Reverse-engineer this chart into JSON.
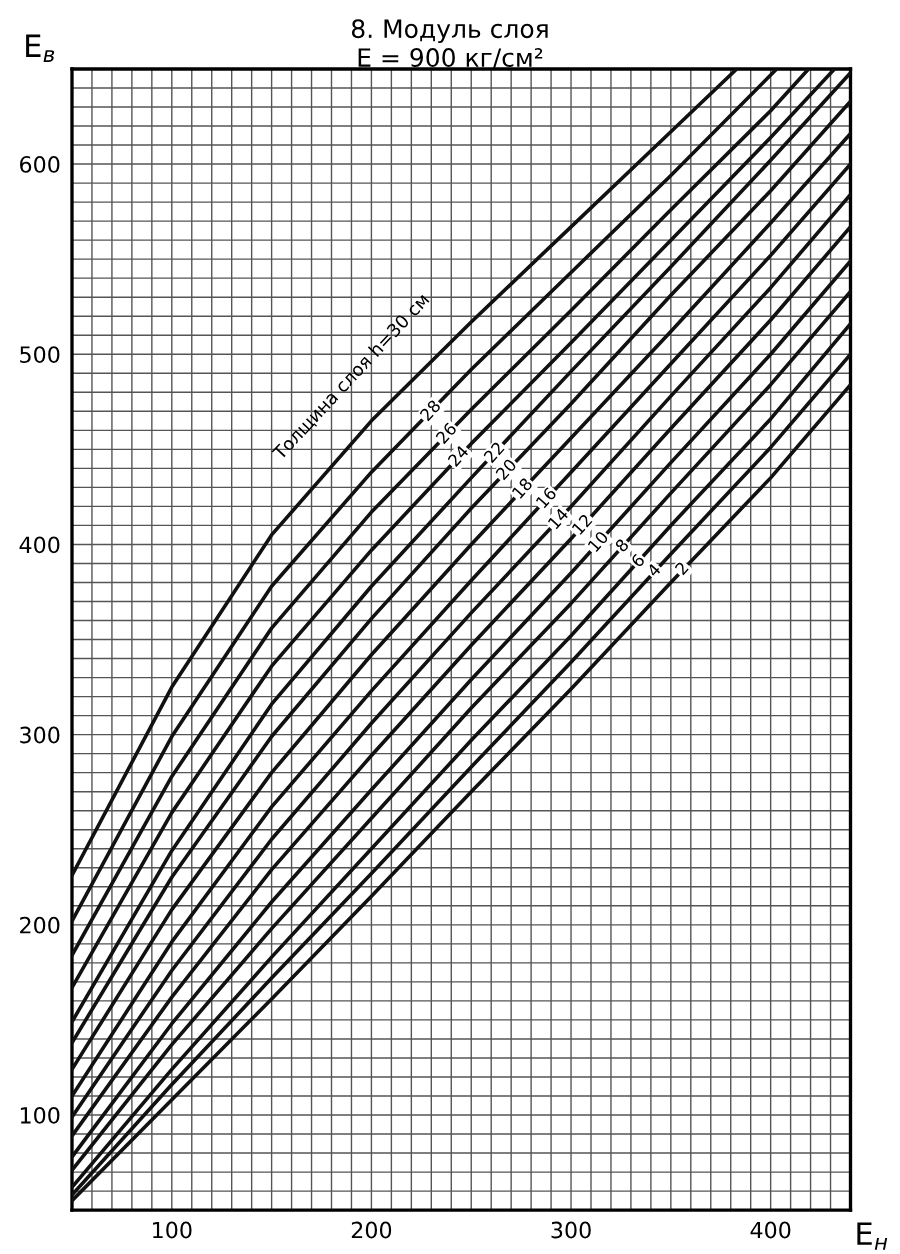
{
  "chart_data": {
    "type": "line",
    "title": "8. Модуль слоя",
    "subtitle": "E = 900 кг/см²",
    "xlabel": "E$_{н}$",
    "ylabel": "E$_{в}$",
    "xlim": [
      50,
      440
    ],
    "ylim": [
      50,
      650
    ],
    "xticks": [
      {
        "value": 50,
        "label": null
      },
      {
        "value": 60,
        "label": null
      },
      {
        "value": 70,
        "label": null
      },
      {
        "value": 80,
        "label": null
      },
      {
        "value": 90,
        "label": null
      },
      100,
      {
        "value": 110,
        "label": null
      },
      {
        "value": 120,
        "label": null
      },
      {
        "value": 130,
        "label": null
      },
      {
        "value": 140,
        "label": null
      },
      {
        "value": 150,
        "label": null
      },
      {
        "value": 160,
        "label": null
      },
      {
        "value": 170,
        "label": null
      },
      {
        "value": 180,
        "label": null
      },
      {
        "value": 190,
        "label": null
      },
      200,
      {
        "value": 210,
        "label": null
      },
      {
        "value": 220,
        "label": null
      },
      {
        "value": 230,
        "label": null
      },
      {
        "value": 240,
        "label": null
      },
      {
        "value": 250,
        "label": null
      },
      {
        "value": 260,
        "label": null
      },
      {
        "value": 270,
        "label": null
      },
      {
        "value": 280,
        "label": null
      },
      {
        "value": 290,
        "label": null
      },
      300,
      {
        "value": 310,
        "label": null
      },
      {
        "value": 320,
        "label": null
      },
      {
        "value": 330,
        "label": null
      },
      {
        "value": 340,
        "label": null
      },
      {
        "value": 350,
        "label": null
      },
      {
        "value": 360,
        "label": null
      },
      {
        "value": 370,
        "label": null
      },
      {
        "value": 380,
        "label": null
      },
      {
        "value": 390,
        "label": null
      },
      400,
      {
        "value": 410,
        "label": null
      },
      {
        "value": 420,
        "label": null
      },
      {
        "value": 430,
        "label": null
      },
      {
        "value": 440,
        "label": null
      }
    ],
    "yticks": [
      {
        "value": 50,
        "label": null
      },
      {
        "value": 60,
        "label": null
      },
      {
        "value": 70,
        "label": null
      },
      {
        "value": 80,
        "label": null
      },
      {
        "value": 90,
        "label": null
      },
      100,
      {
        "value": 110,
        "label": null
      },
      {
        "value": 120,
        "label": null
      },
      {
        "value": 130,
        "label": null
      },
      {
        "value": 140,
        "label": null
      },
      {
        "value": 150,
        "label": null
      },
      {
        "value": 160,
        "label": null
      },
      {
        "value": 170,
        "label": null
      },
      {
        "value": 180,
        "label": null
      },
      {
        "value": 190,
        "label": null
      },
      200,
      {
        "value": 210,
        "label": null
      },
      {
        "value": 220,
        "label": null
      },
      {
        "value": 230,
        "label": null
      },
      {
        "value": 240,
        "label": null
      },
      {
        "value": 250,
        "label": null
      },
      {
        "value": 260,
        "label": null
      },
      {
        "value": 270,
        "label": null
      },
      {
        "value": 280,
        "label": null
      },
      {
        "value": 290,
        "label": null
      },
      300,
      {
        "value": 310,
        "label": null
      },
      {
        "value": 320,
        "label": null
      },
      {
        "value": 330,
        "label": null
      },
      {
        "value": 340,
        "label": null
      },
      {
        "value": 350,
        "label": null
      },
      {
        "value": 360,
        "label": null
      },
      {
        "value": 370,
        "label": null
      },
      {
        "value": 380,
        "label": null
      },
      {
        "value": 390,
        "label": null
      },
      400,
      {
        "value": 410,
        "label": null
      },
      {
        "value": 420,
        "label": null
      },
      {
        "value": 430,
        "label": null
      },
      {
        "value": 440,
        "label": null
      },
      {
        "value": 450,
        "label": null
      },
      {
        "value": 460,
        "label": null
      },
      {
        "value": 470,
        "label": null
      },
      {
        "value": 480,
        "label": null
      },
      {
        "value": 490,
        "label": null
      },
      500,
      {
        "value": 510,
        "label": null
      },
      {
        "value": 520,
        "label": null
      },
      {
        "value": 530,
        "label": null
      },
      {
        "value": 540,
        "label": null
      },
      {
        "value": 550,
        "label": null
      },
      {
        "value": 560,
        "label": null
      },
      {
        "value": 570,
        "label": null
      },
      {
        "value": 580,
        "label": null
      },
      {
        "value": 590,
        "label": null
      },
      600,
      {
        "value": 610,
        "label": null
      },
      {
        "value": 620,
        "label": null
      },
      {
        "value": 630,
        "label": null
      },
      {
        "value": 640,
        "label": null
      },
      {
        "value": 650,
        "label": null
      }
    ],
    "grid": true,
    "marker": "none",
    "line_style": "solid",
    "series": [
      {
        "color": "#111111",
        "x": [
          50,
          100,
          150,
          200,
          250,
          300,
          350,
          383
        ],
        "values": [
          226,
          325,
          405,
          465,
          517,
          567,
          617,
          650
        ]
      },
      {
        "color": "#111111",
        "x": [
          50,
          100,
          150,
          200,
          250,
          300,
          350,
          403
        ],
        "values": [
          202,
          299,
          378,
          438,
          492,
          543,
          594,
          650
        ]
      },
      {
        "color": "#111111",
        "x": [
          50,
          100,
          150,
          200,
          250,
          300,
          350,
          400,
          419
        ],
        "values": [
          184,
          278,
          356,
          417,
          471,
          523,
          576,
          628,
          650
        ]
      },
      {
        "color": "#111111",
        "x": [
          50,
          100,
          150,
          200,
          250,
          300,
          350,
          400,
          432
        ],
        "values": [
          167,
          259,
          336,
          397,
          453,
          506,
          560,
          614,
          650
        ]
      },
      {
        "color": "#111111",
        "x": [
          50,
          100,
          150,
          200,
          250,
          300,
          350,
          400,
          440
        ],
        "values": [
          149,
          239,
          316,
          378,
          435,
          491,
          546,
          602,
          648
        ]
      },
      {
        "color": "#111111",
        "x": [
          50,
          100,
          150,
          200,
          250,
          300,
          350,
          400,
          440
        ],
        "values": [
          138,
          225,
          299,
          361,
          419,
          474,
          531,
          586,
          633
        ]
      },
      {
        "color": "#111111",
        "x": [
          50,
          100,
          150,
          200,
          250,
          300,
          350,
          400,
          440
        ],
        "values": [
          124,
          208,
          280,
          342,
          400,
          456,
          512,
          569,
          616
        ]
      },
      {
        "color": "#111111",
        "x": [
          50,
          100,
          150,
          200,
          250,
          300,
          350,
          400,
          440
        ],
        "values": [
          110,
          191,
          262,
          323,
          381,
          438,
          495,
          552,
          600
        ]
      },
      {
        "color": "#111111",
        "x": [
          50,
          100,
          150,
          200,
          250,
          300,
          350,
          400,
          440
        ],
        "values": [
          99,
          176,
          245,
          306,
          364,
          420,
          478,
          535,
          584
        ]
      },
      {
        "color": "#111111",
        "x": [
          50,
          100,
          150,
          200,
          250,
          300,
          350,
          400,
          440
        ],
        "values": [
          89,
          162,
          229,
          289,
          347,
          403,
          461,
          518,
          567
        ]
      },
      {
        "color": "#111111",
        "x": [
          50,
          100,
          150,
          200,
          250,
          300,
          350,
          400,
          440
        ],
        "values": [
          78,
          148,
          212,
          271,
          329,
          385,
          443,
          500,
          549
        ]
      },
      {
        "color": "#111111",
        "x": [
          50,
          100,
          150,
          200,
          250,
          300,
          350,
          400,
          440
        ],
        "values": [
          71,
          137,
          198,
          256,
          314,
          369,
          427,
          484,
          533
        ]
      },
      {
        "color": "#111111",
        "x": [
          50,
          100,
          150,
          200,
          250,
          300,
          350,
          400,
          440
        ],
        "values": [
          62,
          124,
          183,
          240,
          297,
          352,
          410,
          466,
          516
        ]
      },
      {
        "color": "#111111",
        "x": [
          50,
          100,
          150,
          200,
          250,
          300,
          350,
          400,
          440
        ],
        "values": [
          58,
          116,
          172,
          227,
          283,
          338,
          395,
          451,
          500
        ]
      },
      {
        "color": "#111111",
        "x": [
          50,
          100,
          150,
          200,
          250,
          300,
          350,
          400,
          440
        ],
        "values": [
          55,
          108,
          161,
          215,
          270,
          324,
          380,
          435,
          484
        ]
      }
    ],
    "annotations": [
      "Толщина слоя h=30 см",
      {
        "text": "28",
        "x": 230,
        "y": 470
      },
      {
        "text": "26",
        "x": 238,
        "y": 458
      },
      {
        "text": "24",
        "x": 244,
        "y": 446
      },
      {
        "text": "22",
        "x": 262,
        "y": 448
      },
      {
        "text": "20",
        "x": 268,
        "y": 439
      },
      {
        "text": "18",
        "x": 276,
        "y": 429
      },
      {
        "text": "16",
        "x": 288,
        "y": 424
      },
      {
        "text": "14",
        "x": 294,
        "y": 413
      },
      {
        "text": "12",
        "x": 306,
        "y": 410
      },
      {
        "text": "10",
        "x": 314,
        "y": 401
      },
      {
        "text": "8",
        "x": 326,
        "y": 399
      },
      {
        "text": "6",
        "x": 334,
        "y": 391
      },
      {
        "text": "4",
        "x": 342,
        "y": 386
      },
      {
        "text": "2",
        "x": 356,
        "y": 387
      }
    ]
  }
}
